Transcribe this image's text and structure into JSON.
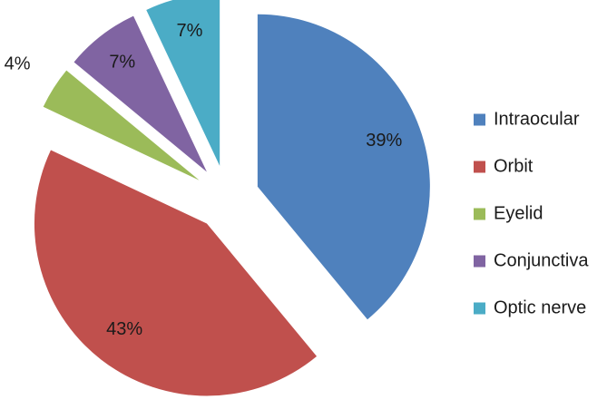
{
  "chart_data": {
    "type": "pie",
    "title": "",
    "categories": [
      "Intraocular",
      "Orbit",
      "Eyelid",
      "Conjunctiva",
      "Optic nerve"
    ],
    "values": [
      39,
      43,
      4,
      7,
      7
    ],
    "labels": [
      "39%",
      "43%",
      "4%",
      "7%",
      "7%"
    ],
    "colors": [
      "#4F81BD",
      "#C0504D",
      "#9BBB59",
      "#8064A2",
      "#4BACC6"
    ],
    "exploded": true,
    "legend_position": "right"
  }
}
